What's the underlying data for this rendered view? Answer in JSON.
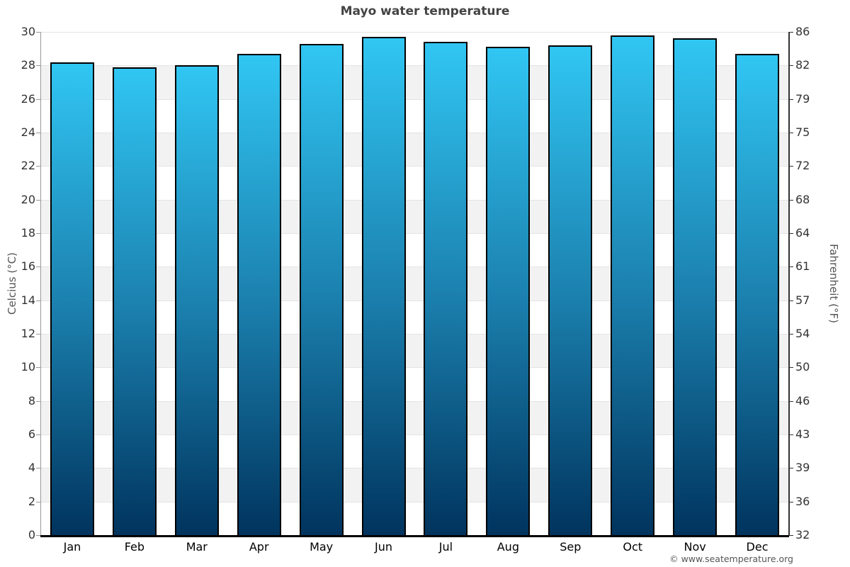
{
  "chart_data": {
    "type": "bar",
    "title": "Mayo water temperature",
    "categories": [
      "Jan",
      "Feb",
      "Mar",
      "Apr",
      "May",
      "Jun",
      "Jul",
      "Aug",
      "Sep",
      "Oct",
      "Nov",
      "Dec"
    ],
    "values": [
      28.2,
      27.9,
      28.0,
      28.7,
      29.3,
      29.7,
      29.4,
      29.1,
      29.2,
      29.8,
      29.6,
      28.7
    ],
    "unit": "°C",
    "xlabel": "",
    "ylabel_left": "Celcius (°C)",
    "ylabel_right": "Fahrenheit (°F)",
    "ylim": [
      0,
      30
    ],
    "celsius_ticks": [
      0,
      2,
      4,
      6,
      8,
      10,
      12,
      14,
      16,
      18,
      20,
      22,
      24,
      26,
      28,
      30
    ],
    "fahrenheit_ticks": [
      "32",
      "36",
      "39",
      "43",
      "46",
      "50",
      "54",
      "57",
      "61",
      "64",
      "68",
      "72",
      "75",
      "79",
      "82",
      "86"
    ],
    "grid": "alternating-horizontal-bands",
    "legend": "none"
  },
  "footer": {
    "credit": "© www.seatemperature.org"
  },
  "colors": {
    "bar_gradient_top": "#31C6F3",
    "bar_gradient_mid": "#1B7FAD",
    "bar_gradient_bottom": "#00345E",
    "bar_border": "#000000",
    "band_shaded": "#F2F2F2",
    "band_plain": "#FFFFFF",
    "grid_line": "#E4E4E4",
    "title_text": "#444444",
    "tick_text": "#333333",
    "axis_title_text": "#555555",
    "footer_text": "#555555",
    "left_axis_line": "#999999",
    "right_axis_line": "#333333",
    "bottom_axis_line": "#000000"
  }
}
